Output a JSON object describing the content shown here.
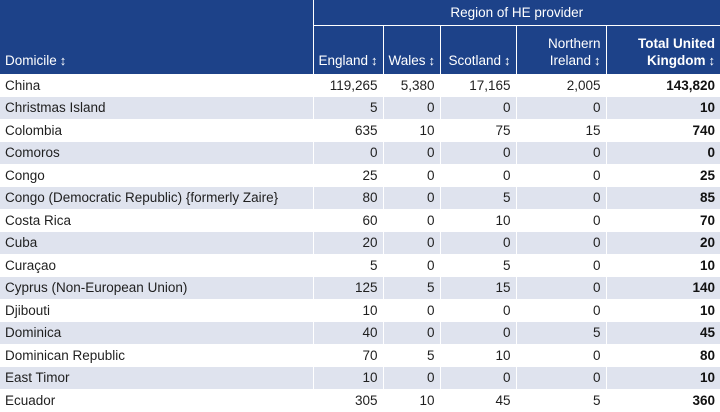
{
  "table": {
    "group_header": "Region of HE provider",
    "columns": {
      "domicile": "Domicile",
      "england": "England",
      "wales": "Wales",
      "scotland": "Scotland",
      "ni_line1": "Northern",
      "ni_line2": "Ireland",
      "uk_line1": "Total United",
      "uk_line2": "Kingdom"
    },
    "sort_glyph": "↕",
    "rows": [
      {
        "domicile": "China",
        "england": "119,265",
        "wales": "5,380",
        "scotland": "17,165",
        "ni": "2,005",
        "uk": "143,820"
      },
      {
        "domicile": "Christmas Island",
        "england": "5",
        "wales": "0",
        "scotland": "0",
        "ni": "0",
        "uk": "10"
      },
      {
        "domicile": "Colombia",
        "england": "635",
        "wales": "10",
        "scotland": "75",
        "ni": "15",
        "uk": "740"
      },
      {
        "domicile": "Comoros",
        "england": "0",
        "wales": "0",
        "scotland": "0",
        "ni": "0",
        "uk": "0"
      },
      {
        "domicile": "Congo",
        "england": "25",
        "wales": "0",
        "scotland": "0",
        "ni": "0",
        "uk": "25"
      },
      {
        "domicile": "Congo (Democratic Republic) {formerly Zaire}",
        "england": "80",
        "wales": "0",
        "scotland": "5",
        "ni": "0",
        "uk": "85"
      },
      {
        "domicile": "Costa Rica",
        "england": "60",
        "wales": "0",
        "scotland": "10",
        "ni": "0",
        "uk": "70"
      },
      {
        "domicile": "Cuba",
        "england": "20",
        "wales": "0",
        "scotland": "0",
        "ni": "0",
        "uk": "20"
      },
      {
        "domicile": "Curaçao",
        "england": "5",
        "wales": "0",
        "scotland": "5",
        "ni": "0",
        "uk": "10"
      },
      {
        "domicile": "Cyprus (Non-European Union)",
        "england": "125",
        "wales": "5",
        "scotland": "15",
        "ni": "0",
        "uk": "140"
      },
      {
        "domicile": "Djibouti",
        "england": "10",
        "wales": "0",
        "scotland": "0",
        "ni": "0",
        "uk": "10"
      },
      {
        "domicile": "Dominica",
        "england": "40",
        "wales": "0",
        "scotland": "0",
        "ni": "5",
        "uk": "45"
      },
      {
        "domicile": "Dominican Republic",
        "england": "70",
        "wales": "5",
        "scotland": "10",
        "ni": "0",
        "uk": "80"
      },
      {
        "domicile": "East Timor",
        "england": "10",
        "wales": "0",
        "scotland": "0",
        "ni": "0",
        "uk": "10"
      },
      {
        "domicile": "Ecuador",
        "england": "305",
        "wales": "10",
        "scotland": "45",
        "ni": "5",
        "uk": "360"
      }
    ]
  },
  "colors": {
    "header_bg": "#1d4289",
    "header_text": "#ffffff",
    "row_alt_bg": "#dfe3ee",
    "row_bg": "#ffffff"
  }
}
